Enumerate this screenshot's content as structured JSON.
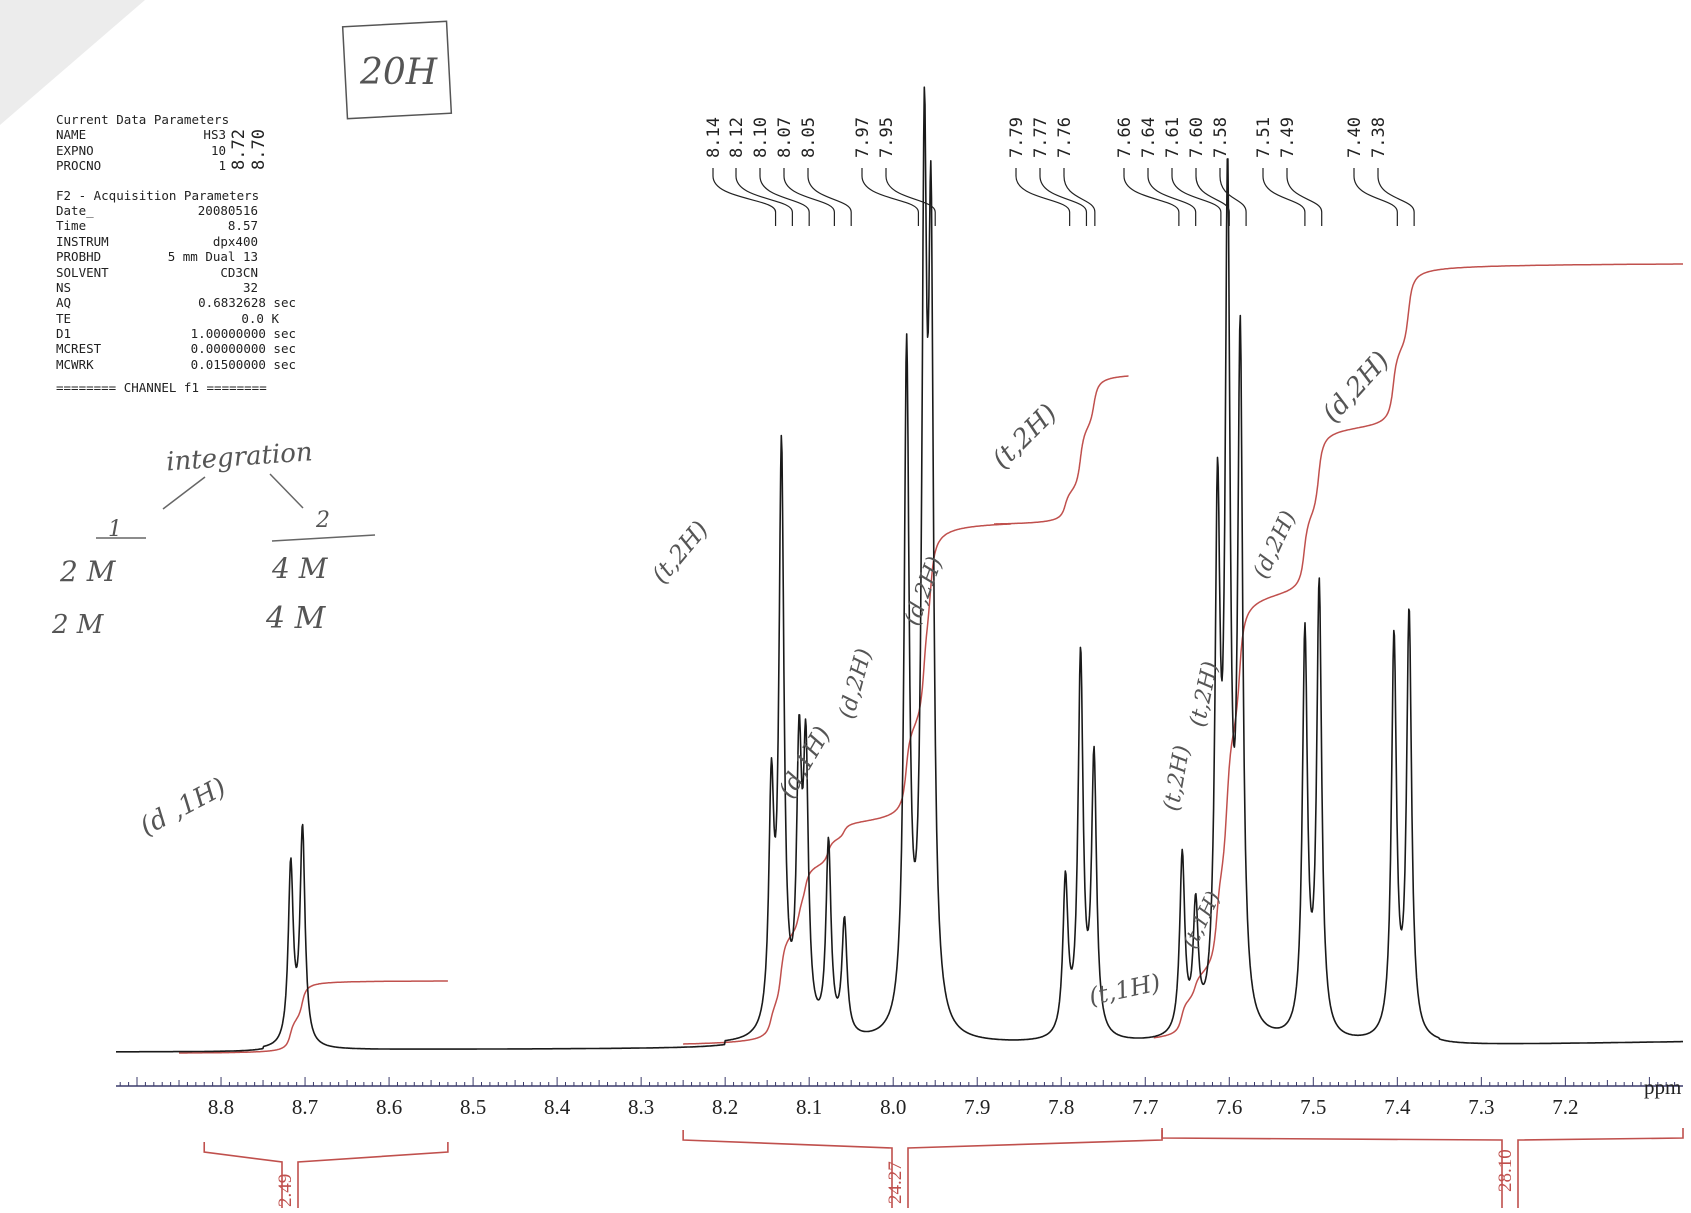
{
  "parameters": {
    "title": "Current Data Parameters",
    "rows": [
      {
        "key": "NAME",
        "value": "HS3"
      },
      {
        "key": "EXPNO",
        "value": "10"
      },
      {
        "key": "PROCNO",
        "value": "1"
      }
    ],
    "section2_title": "F2 - Acquisition Parameters",
    "acq_rows": [
      {
        "key": "Date_",
        "value": "20080516"
      },
      {
        "key": "Time",
        "value": "8.57"
      },
      {
        "key": "INSTRUM",
        "value": "dpx400"
      },
      {
        "key": "PROBHD",
        "value": "5 mm Dual 13"
      },
      {
        "key": "SOLVENT",
        "value": "CD3CN"
      },
      {
        "key": "NS",
        "value": "32"
      },
      {
        "key": "AQ",
        "value": "0.6832628 sec"
      },
      {
        "key": "TE",
        "value": "0.0 K"
      },
      {
        "key": "D1",
        "value": "1.00000000 sec"
      },
      {
        "key": "MCREST",
        "value": "0.00000000 sec"
      },
      {
        "key": "MCWRK",
        "value": "0.01500000 sec"
      }
    ],
    "channel": "======== CHANNEL f1 ========"
  },
  "handwritten": {
    "box_20h": "20H",
    "integration": "integration",
    "col1_head": "1",
    "col2_head": "2",
    "col1_row1": "2 M",
    "col1_row2": "2 M",
    "col2_row1": "4 M",
    "col2_row2": "4 M",
    "peak_notes": [
      {
        "text": "(d ,1H)"
      },
      {
        "text": "(t,2H)"
      },
      {
        "text": "(d,1H)"
      },
      {
        "text": "(d,2H)"
      },
      {
        "text": "(d,2H)"
      },
      {
        "text": "(t,2H)"
      },
      {
        "text": "(t,1H)"
      },
      {
        "text": "(t,1H)"
      },
      {
        "text": "(t,2H)"
      },
      {
        "text": "(t,2H)"
      },
      {
        "text": "(d,2H)"
      },
      {
        "text": "(d,2H)"
      }
    ]
  },
  "chart_data": {
    "type": "line",
    "xlabel": "ppm",
    "xlim": [
      8.925,
      7.06
    ],
    "x_reversed": true,
    "ticks": [
      "8.8",
      "8.7",
      "8.6",
      "8.5",
      "8.4",
      "8.3",
      "8.2",
      "8.1",
      "8.0",
      "7.9",
      "7.8",
      "7.7",
      "7.6",
      "7.5",
      "7.4",
      "7.3",
      "7.2"
    ],
    "peak_labels": [
      "8.72",
      "8.70",
      "8.14",
      "8.12",
      "8.10",
      "8.07",
      "8.05",
      "7.97",
      "7.95",
      "7.79",
      "7.77",
      "7.76",
      "7.66",
      "7.64",
      "7.61",
      "7.60",
      "7.58",
      "7.51",
      "7.49",
      "7.40",
      "7.38"
    ],
    "peaks": [
      {
        "ppm": 8.717,
        "height": 0.22
      },
      {
        "ppm": 8.703,
        "height": 0.265
      },
      {
        "ppm": 8.145,
        "height": 0.285
      },
      {
        "ppm": 8.133,
        "height": 0.71
      },
      {
        "ppm": 8.112,
        "height": 0.325
      },
      {
        "ppm": 8.104,
        "height": 0.325
      },
      {
        "ppm": 8.077,
        "height": 0.235
      },
      {
        "ppm": 8.058,
        "height": 0.14
      },
      {
        "ppm": 7.984,
        "height": 0.83
      },
      {
        "ppm": 7.963,
        "height": 1.0
      },
      {
        "ppm": 7.955,
        "height": 0.9
      },
      {
        "ppm": 7.795,
        "height": 0.19
      },
      {
        "ppm": 7.777,
        "height": 0.465
      },
      {
        "ppm": 7.761,
        "height": 0.34
      },
      {
        "ppm": 7.656,
        "height": 0.22
      },
      {
        "ppm": 7.64,
        "height": 0.15
      },
      {
        "ppm": 7.614,
        "height": 0.62
      },
      {
        "ppm": 7.602,
        "height": 1.0
      },
      {
        "ppm": 7.587,
        "height": 0.83
      },
      {
        "ppm": 7.51,
        "height": 0.49
      },
      {
        "ppm": 7.493,
        "height": 0.55
      },
      {
        "ppm": 7.404,
        "height": 0.49
      },
      {
        "ppm": 7.386,
        "height": 0.52
      }
    ],
    "integral_values": [
      "2.49",
      "24.27",
      "28.10"
    ],
    "integral_ranges": [
      [
        8.82,
        8.53
      ],
      [
        8.25,
        7.68
      ],
      [
        7.68,
        7.06
      ]
    ],
    "colors": {
      "spectrum": "#1a1a1a",
      "integral": "#c0504d",
      "axis": "#3a3a6a"
    }
  }
}
